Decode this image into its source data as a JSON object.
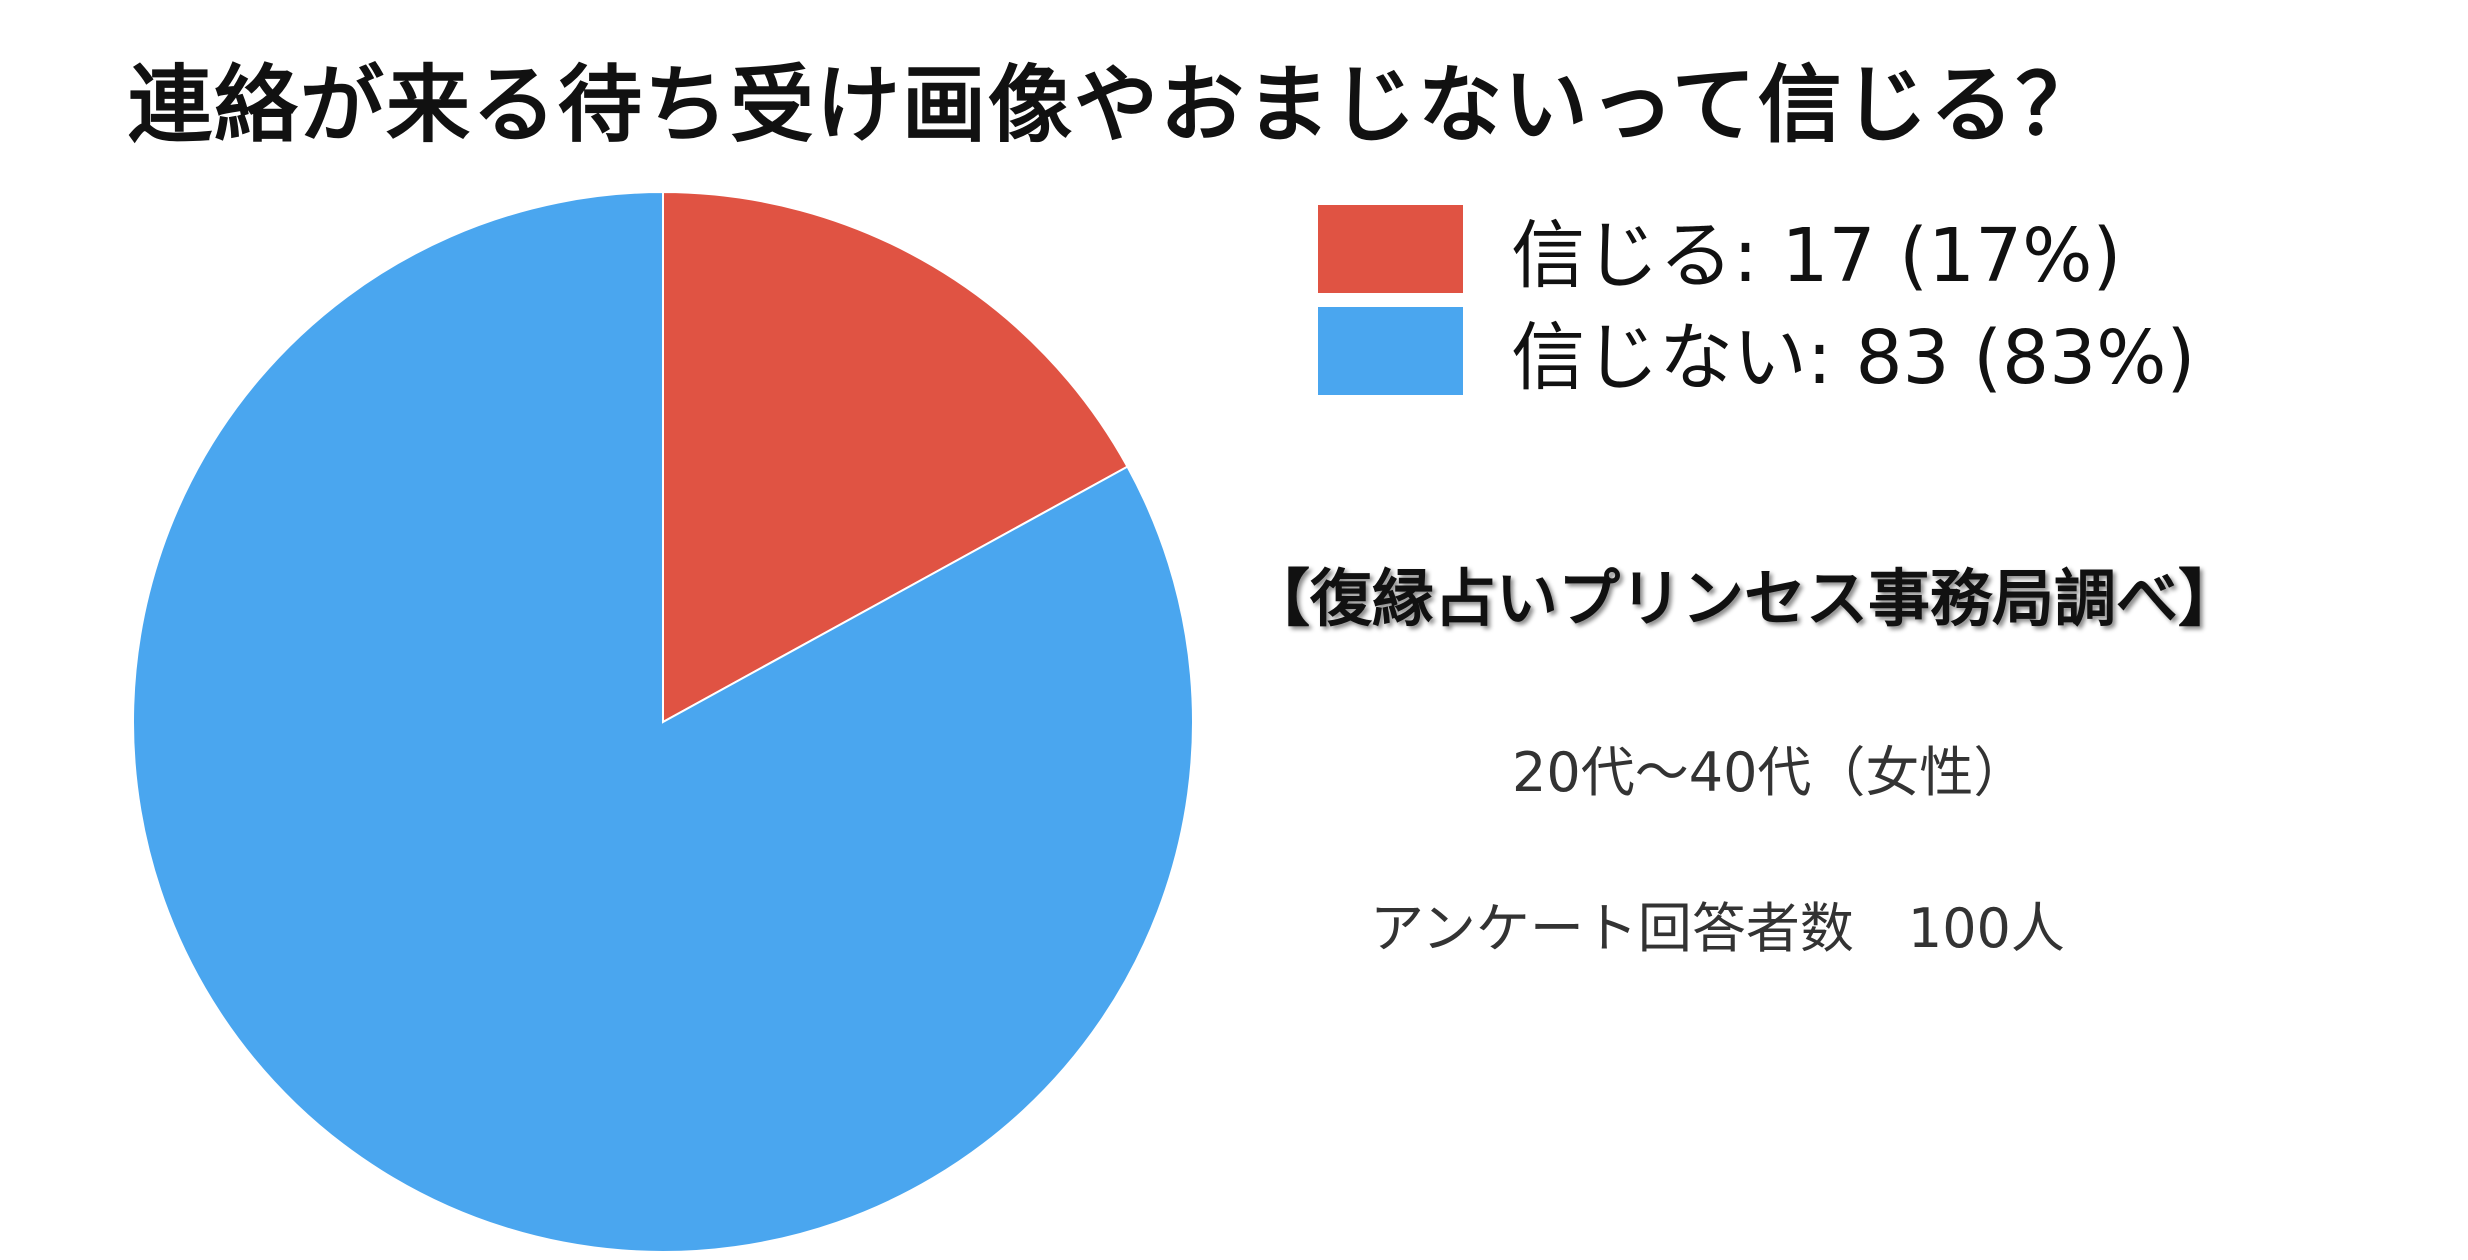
{
  "title": "連絡が来る待ち受け画像やおまじないって信じる？",
  "chart_data": {
    "type": "pie",
    "title": "連絡が来る待ち受け画像やおまじないって信じる？",
    "slices": [
      {
        "name": "信じる",
        "value": 17,
        "percent": 17,
        "color": "#e05343",
        "label": "信じる: 17 (17%)"
      },
      {
        "name": "信じない",
        "value": 83,
        "percent": 83,
        "color": "#4aa6ef",
        "label": "信じない: 83 (83%)"
      }
    ],
    "start_angle_deg": 0,
    "direction": "clockwise",
    "legend_position": "top-right"
  },
  "notes": {
    "source": "【復縁占いプリンセス事務局調べ】",
    "age": "20代〜40代（女性）",
    "count": "アンケート回答者数　100人"
  }
}
